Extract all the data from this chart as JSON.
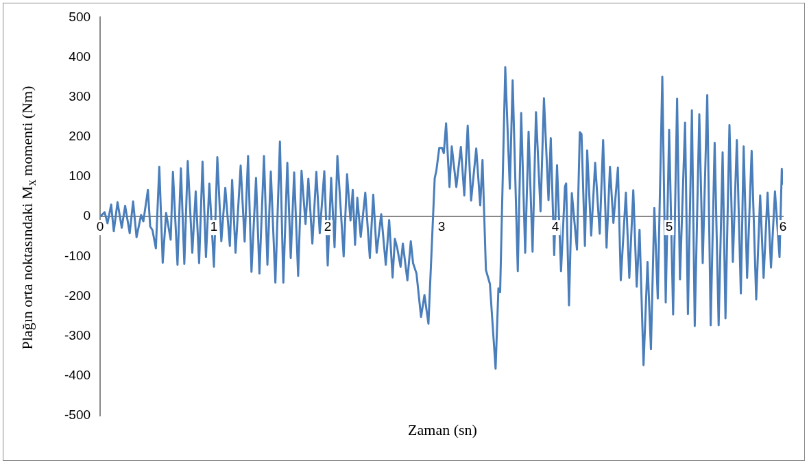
{
  "chart_data": {
    "type": "line",
    "xlabel": "Zaman (sn)",
    "ylabel": "Plağın orta noktasındaki M$_{x}$ momenti (Nm)",
    "xlim": [
      0,
      6
    ],
    "xticks": [
      0,
      1,
      2,
      3,
      4,
      5,
      6
    ],
    "ylim": [
      -500,
      500
    ],
    "yticks": [
      -500,
      -400,
      -300,
      -200,
      -100,
      0,
      100,
      200,
      300,
      400,
      500
    ],
    "marker": "none",
    "x": [
      0,
      0.04,
      0.065,
      0.097,
      0.12,
      0.153,
      0.19,
      0.22,
      0.26,
      0.29,
      0.32,
      0.36,
      0.38,
      0.42,
      0.44,
      0.46,
      0.49,
      0.52,
      0.55,
      0.58,
      0.62,
      0.64,
      0.68,
      0.71,
      0.74,
      0.77,
      0.81,
      0.84,
      0.87,
      0.9,
      0.93,
      0.96,
      1.0,
      1.03,
      1.065,
      1.1,
      1.14,
      1.16,
      1.19,
      1.235,
      1.27,
      1.3,
      1.33,
      1.37,
      1.4,
      1.44,
      1.47,
      1.5,
      1.54,
      1.58,
      1.61,
      1.645,
      1.675,
      1.705,
      1.74,
      1.77,
      1.805,
      1.83,
      1.865,
      1.9,
      1.93,
      1.97,
      2.0,
      2.03,
      2.06,
      2.085,
      2.14,
      2.17,
      2.2,
      2.22,
      2.24,
      2.26,
      2.29,
      2.33,
      2.37,
      2.4,
      2.43,
      2.47,
      2.51,
      2.54,
      2.57,
      2.59,
      2.61,
      2.64,
      2.66,
      2.7,
      2.73,
      2.75,
      2.78,
      2.82,
      2.85,
      2.885,
      2.94,
      2.955,
      2.98,
      3.005,
      3.02,
      3.04,
      3.07,
      3.09,
      3.13,
      3.17,
      3.2,
      3.23,
      3.26,
      3.305,
      3.34,
      3.36,
      3.39,
      3.425,
      3.475,
      3.5,
      3.515,
      3.56,
      3.6,
      3.625,
      3.67,
      3.7,
      3.735,
      3.765,
      3.8,
      3.83,
      3.87,
      3.9,
      3.94,
      3.96,
      3.99,
      4.015,
      4.05,
      4.085,
      4.095,
      4.12,
      4.145,
      4.19,
      4.215,
      4.23,
      4.26,
      4.28,
      4.315,
      4.35,
      4.39,
      4.42,
      4.45,
      4.48,
      4.51,
      4.55,
      4.575,
      4.62,
      4.65,
      4.685,
      4.715,
      4.74,
      4.775,
      4.81,
      4.84,
      4.87,
      4.9,
      4.94,
      4.97,
      5.0,
      5.035,
      5.07,
      5.095,
      5.14,
      5.165,
      5.2,
      5.225,
      5.265,
      5.295,
      5.335,
      5.365,
      5.4,
      5.435,
      5.47,
      5.495,
      5.53,
      5.56,
      5.595,
      5.63,
      5.655,
      5.685,
      5.725,
      5.765,
      5.8,
      5.83,
      5.865,
      5.895,
      5.93,
      5.97,
      5.99,
      5.995
    ],
    "series": [
      {
        "color": "#4a7ebb",
        "values": [
          0,
          11,
          -17,
          30,
          -37,
          36,
          -28,
          27,
          -42,
          38,
          -52,
          4,
          -12,
          67,
          -25,
          -34,
          -80,
          125,
          -116,
          9,
          -58,
          112,
          -121,
          121,
          -119,
          139,
          -91,
          63,
          -117,
          138,
          -102,
          83,
          -126,
          149,
          -62,
          72,
          -74,
          92,
          -91,
          128,
          -63,
          152,
          -139,
          97,
          -143,
          152,
          -121,
          113,
          -166,
          188,
          -166,
          135,
          -104,
          111,
          -149,
          115,
          -19,
          95,
          -68,
          112,
          -42,
          114,
          -123,
          97,
          -77,
          152,
          -100,
          106,
          -10,
          67,
          -71,
          47,
          -51,
          60,
          -104,
          55,
          -91,
          6,
          -121,
          -9,
          -153,
          -56,
          -78,
          -126,
          -68,
          -160,
          -62,
          -117,
          -143,
          -252,
          -197,
          -269,
          96,
          116,
          172,
          172,
          159,
          234,
          74,
          176,
          74,
          175,
          53,
          228,
          40,
          171,
          28,
          142,
          -134,
          -169,
          -382,
          -180,
          -190,
          375,
          70,
          342,
          -137,
          260,
          -91,
          213,
          -88,
          262,
          13,
          297,
          41,
          197,
          -97,
          129,
          -137,
          76,
          83,
          -223,
          59,
          -83,
          212,
          207,
          -74,
          166,
          -48,
          135,
          -43,
          192,
          -78,
          125,
          -16,
          123,
          -160,
          60,
          -154,
          66,
          -176,
          -33,
          -373,
          -114,
          -333,
          22,
          -206,
          351,
          -216,
          218,
          -246,
          296,
          -158,
          236,
          -245,
          267,
          -275,
          257,
          -117,
          305,
          -273,
          185,
          -273,
          161,
          -256,
          230,
          -114,
          192,
          -193,
          176,
          -154,
          165,
          -208,
          53,
          -154,
          60,
          -128,
          63,
          -102,
          120,
          80
        ]
      }
    ]
  }
}
